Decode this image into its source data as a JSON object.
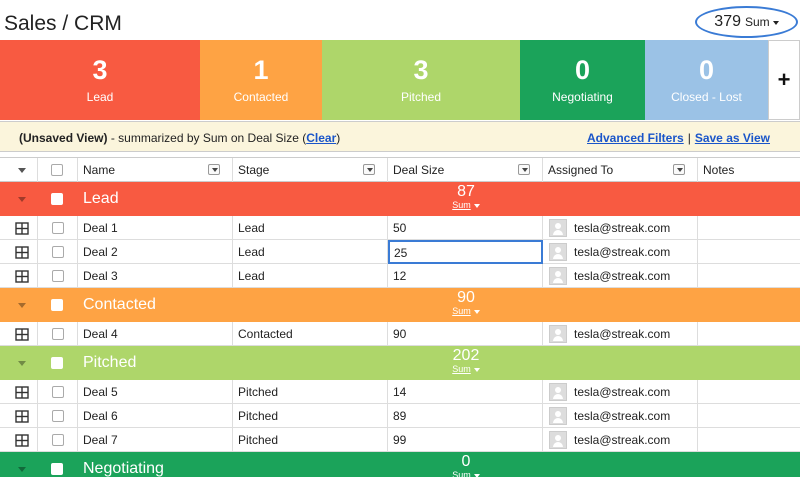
{
  "header": {
    "title": "Sales / CRM",
    "sum_value": "379",
    "sum_label": "Sum"
  },
  "stages": [
    {
      "count": "3",
      "name": "Lead",
      "color": "#f85a41"
    },
    {
      "count": "1",
      "name": "Contacted",
      "color": "#fea344"
    },
    {
      "count": "3",
      "name": "Pitched",
      "color": "#aed66a"
    },
    {
      "count": "0",
      "name": "Negotiating",
      "color": "#1ba35a"
    },
    {
      "count": "0",
      "name": "Closed - Lost",
      "color": "#9bc2e6"
    }
  ],
  "add_stage_label": "+",
  "infobar": {
    "view_name": "(Unsaved View)",
    "summary_text": " - summarized by Sum on Deal Size (",
    "clear_label": "Clear",
    "close_paren": ")",
    "advanced_filters": "Advanced Filters",
    "separator": "|",
    "save_as_view": "Save as View"
  },
  "columns": {
    "name": "Name",
    "stage": "Stage",
    "deal_size": "Deal Size",
    "assigned_to": "Assigned To",
    "notes": "Notes"
  },
  "groups": [
    {
      "name": "Lead",
      "sum": "87",
      "sum_label": "Sum",
      "color": "#f85a41",
      "rows": [
        {
          "name": "Deal 1",
          "stage": "Lead",
          "deal_size": "50",
          "assigned": "tesla@streak.com"
        },
        {
          "name": "Deal 2",
          "stage": "Lead",
          "deal_size": "25",
          "assigned": "tesla@streak.com"
        },
        {
          "name": "Deal 3",
          "stage": "Lead",
          "deal_size": "12",
          "assigned": "tesla@streak.com"
        }
      ]
    },
    {
      "name": "Contacted",
      "sum": "90",
      "sum_label": "Sum",
      "color": "#fea344",
      "rows": [
        {
          "name": "Deal 4",
          "stage": "Contacted",
          "deal_size": "90",
          "assigned": "tesla@streak.com"
        }
      ]
    },
    {
      "name": "Pitched",
      "sum": "202",
      "sum_label": "Sum",
      "color": "#aed66a",
      "rows": [
        {
          "name": "Deal 5",
          "stage": "Pitched",
          "deal_size": "14",
          "assigned": "tesla@streak.com"
        },
        {
          "name": "Deal 6",
          "stage": "Pitched",
          "deal_size": "89",
          "assigned": "tesla@streak.com"
        },
        {
          "name": "Deal 7",
          "stage": "Pitched",
          "deal_size": "99",
          "assigned": "tesla@streak.com"
        }
      ]
    },
    {
      "name": "Negotiating",
      "sum": "0",
      "sum_label": "Sum",
      "color": "#1ba35a",
      "rows": []
    }
  ]
}
